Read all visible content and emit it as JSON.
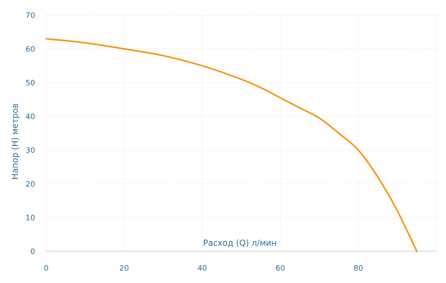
{
  "chart_data": {
    "type": "line",
    "title": "",
    "xlabel": "Расход (Q) л/мин",
    "ylabel": "Напор (H) метров",
    "xlim": [
      0,
      100
    ],
    "ylim": [
      0,
      70
    ],
    "xticks": [
      0,
      20,
      40,
      60,
      80
    ],
    "yticks": [
      0,
      10,
      20,
      30,
      40,
      50,
      60,
      70
    ],
    "grid": true,
    "series": [
      {
        "color": "#f5930d",
        "x": [
          0,
          10,
          20,
          30,
          40,
          50,
          55,
          60,
          65,
          70,
          75,
          80,
          85,
          90,
          95
        ],
        "y": [
          63,
          61.8,
          60,
          58,
          55,
          51,
          48.5,
          45.5,
          42.5,
          39.5,
          35,
          30,
          22,
          12,
          0
        ]
      }
    ]
  }
}
